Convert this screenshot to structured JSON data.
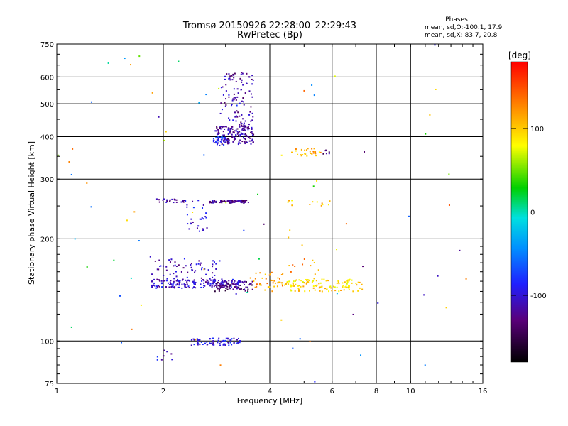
{
  "chart_data": {
    "type": "scatter",
    "title": "Tromsø 20150926 22:28:00–22:29:43",
    "subtitle": "RwPretec (Bp)",
    "xlabel": "Frequency [MHz]",
    "ylabel": "Stationary phase Virtual Height [km]",
    "x_scale": "log",
    "y_scale": "log",
    "xlim": [
      1,
      16
    ],
    "ylim": [
      75,
      750
    ],
    "x_ticks": [
      1,
      2,
      4,
      6,
      8,
      10,
      16
    ],
    "x_gridlines": [
      2,
      4,
      6,
      8,
      10
    ],
    "y_ticks": [
      75,
      100,
      200,
      300,
      400,
      500,
      600,
      750
    ],
    "y_gridlines": [
      100,
      200,
      300,
      400,
      500,
      600
    ],
    "grid": true,
    "colorbar": {
      "label": "[deg]",
      "range": [
        -180,
        180
      ],
      "ticks": [
        -100,
        0,
        100
      ]
    },
    "stats": {
      "title": "Phases",
      "line1": "mean, sd,O:-100.1, 17.9",
      "line2": "mean, sd,X:  83.7, 20.8"
    },
    "clusters": [
      {
        "f": [
          1.85,
          3.3
        ],
        "h": [
          143,
          152
        ],
        "phase": -105,
        "n": 190
      },
      {
        "f": [
          1.85,
          2.9
        ],
        "h": [
          150,
          175
        ],
        "phase": -110,
        "n": 70
      },
      {
        "f": [
          2.8,
          3.6
        ],
        "h": [
          140,
          150
        ],
        "phase": -135,
        "n": 60
      },
      {
        "f": [
          3.6,
          4.4
        ],
        "h": [
          140,
          160
        ],
        "phase": 120,
        "n": 40
      },
      {
        "f": [
          4.4,
          7.3
        ],
        "h": [
          140,
          152
        ],
        "phase": 95,
        "n": 120
      },
      {
        "f": [
          2.4,
          3.3
        ],
        "h": [
          97,
          102
        ],
        "phase": -95,
        "n": 70
      },
      {
        "f": [
          1.9,
          2.15
        ],
        "h": [
          88,
          95
        ],
        "phase": -100,
        "n": 8
      },
      {
        "f": [
          1.9,
          2.3
        ],
        "h": [
          256,
          262
        ],
        "phase": -120,
        "n": 25
      },
      {
        "f": [
          2.7,
          3.5
        ],
        "h": [
          255,
          260
        ],
        "phase": -125,
        "n": 80
      },
      {
        "f": [
          2.3,
          2.7
        ],
        "h": [
          210,
          260
        ],
        "phase": -100,
        "n": 30
      },
      {
        "f": [
          2.8,
          3.6
        ],
        "h": [
          380,
          430
        ],
        "phase": -120,
        "n": 150
      },
      {
        "f": [
          2.75,
          3.0
        ],
        "h": [
          375,
          400
        ],
        "phase": -80,
        "n": 30
      },
      {
        "f": [
          2.9,
          3.6
        ],
        "h": [
          430,
          620
        ],
        "phase": -115,
        "n": 100
      },
      {
        "f": [
          4.6,
          5.6
        ],
        "h": [
          350,
          370
        ],
        "phase": 110,
        "n": 30
      },
      {
        "f": [
          4.5,
          6.0
        ],
        "h": [
          250,
          260
        ],
        "phase": 100,
        "n": 12
      },
      {
        "f": [
          4.5,
          5.5
        ],
        "h": [
          150,
          220
        ],
        "phase": 120,
        "n": 15
      },
      {
        "f": [
          5.5,
          6.0
        ],
        "h": [
          355,
          365
        ],
        "phase": -130,
        "n": 6
      },
      {
        "f": [
          1.0,
          16.0
        ],
        "h": [
          75,
          750
        ],
        "phase": 0,
        "n": 80,
        "sparse": true
      }
    ]
  }
}
